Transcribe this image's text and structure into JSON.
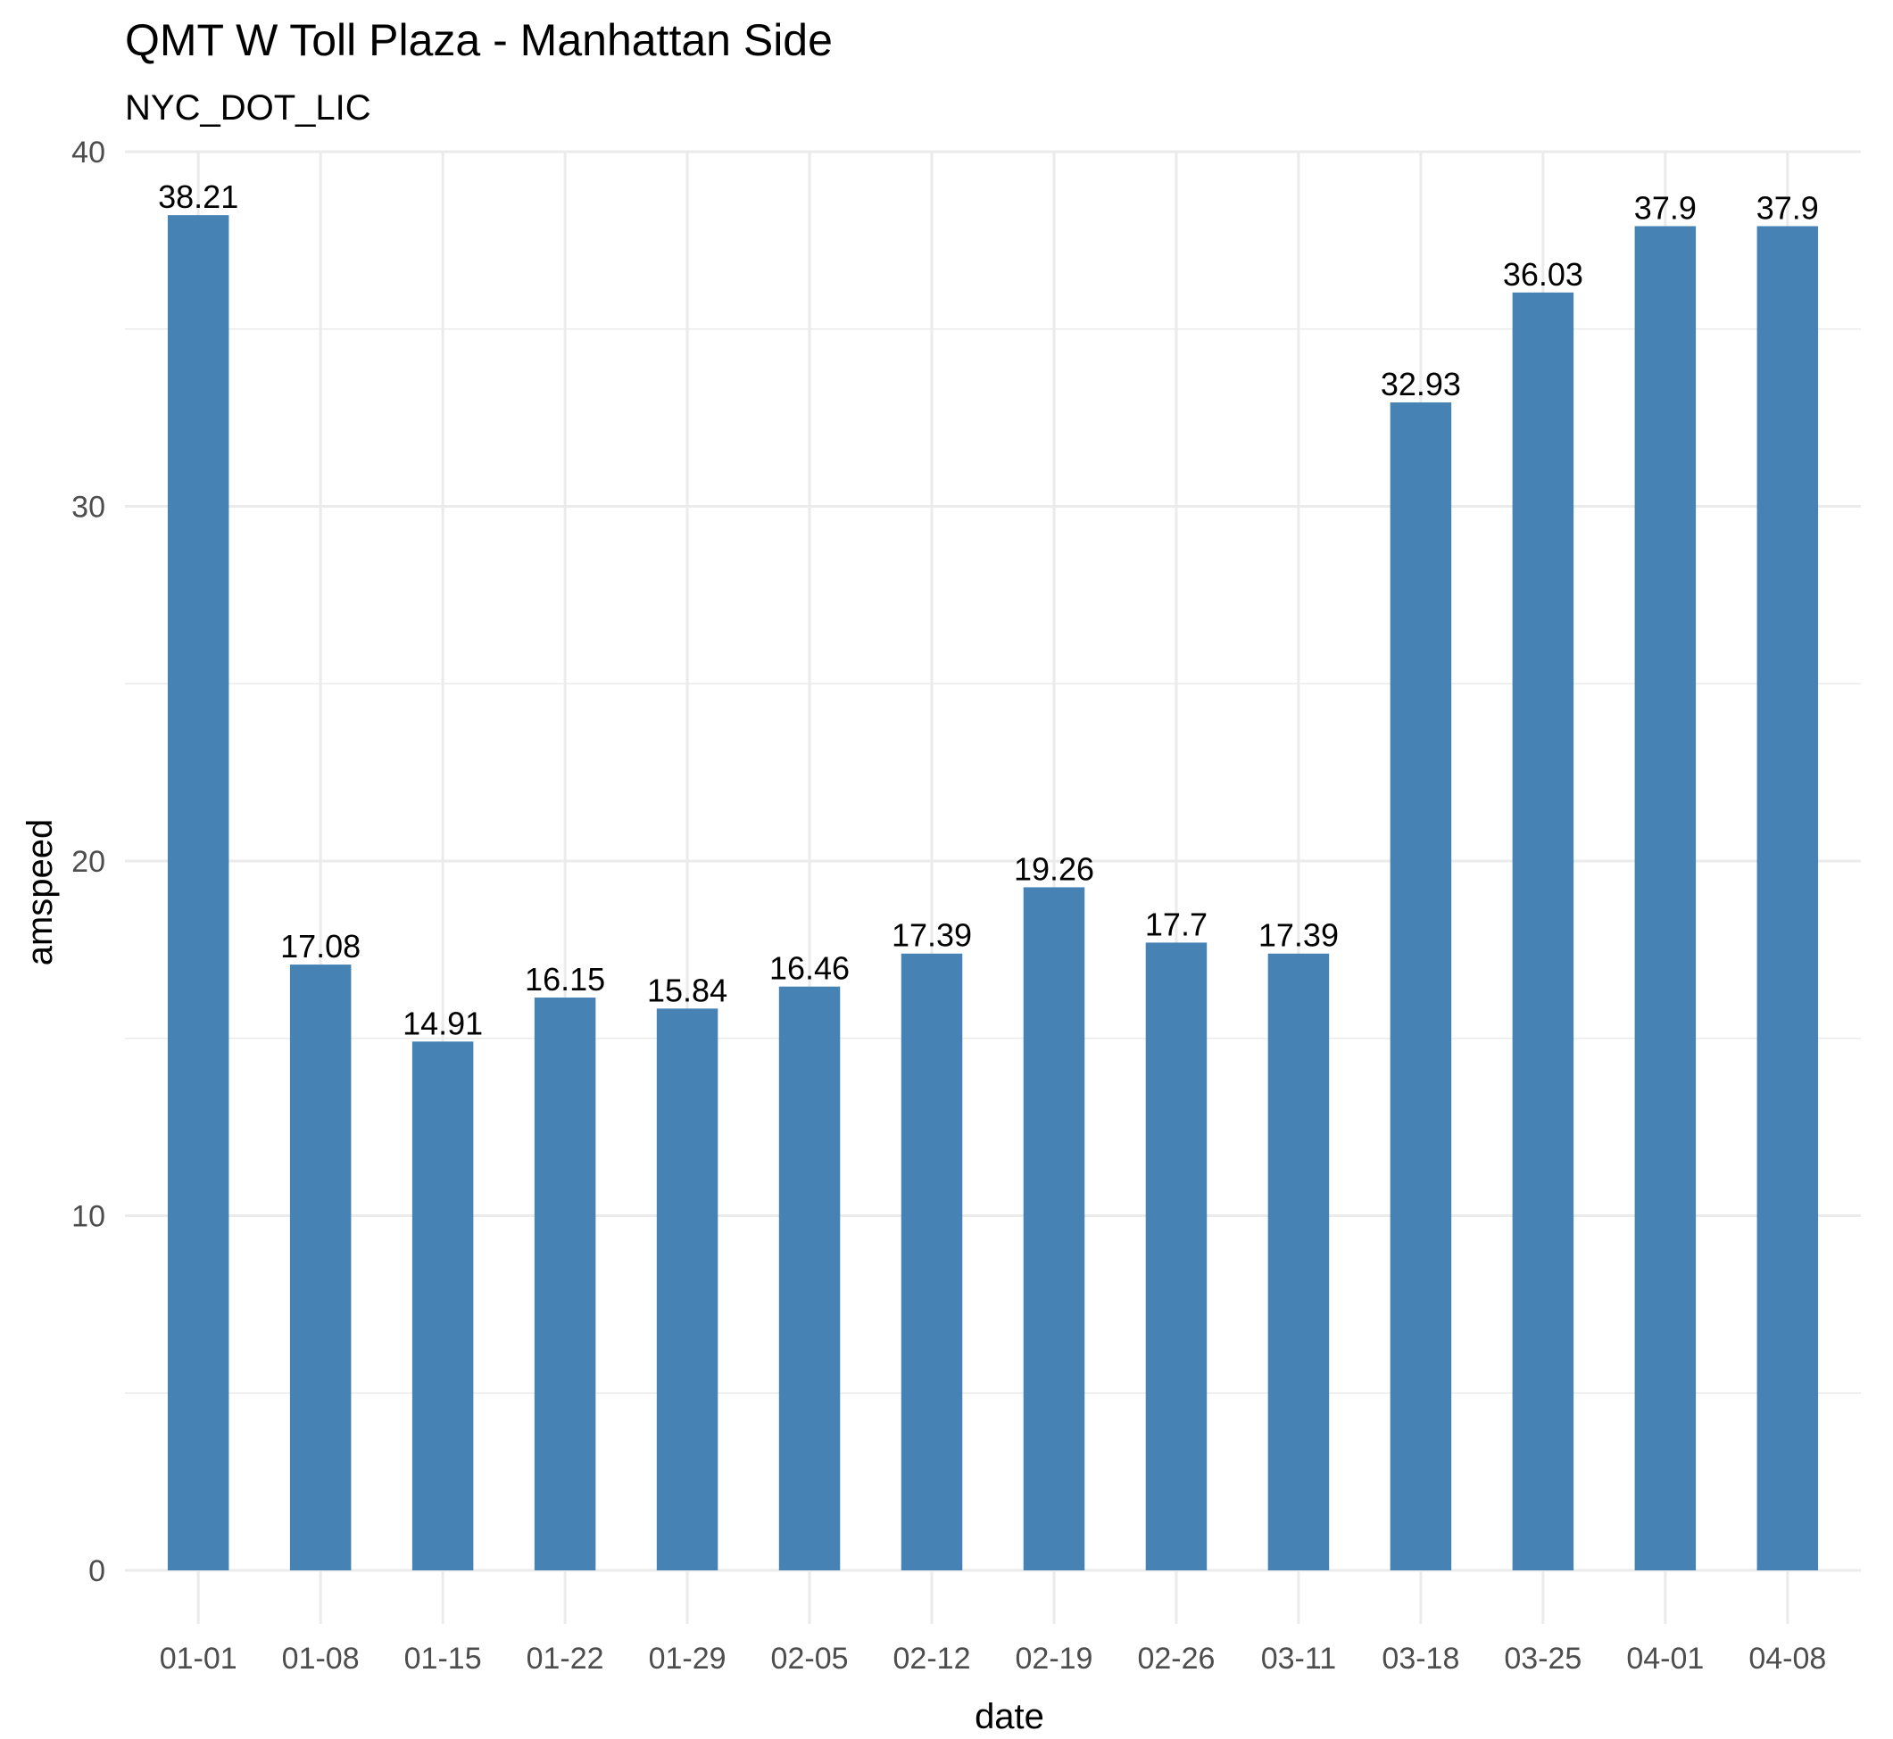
{
  "chart_data": {
    "type": "bar",
    "title": "QMT W Toll Plaza - Manhattan Side",
    "subtitle": "NYC_DOT_LIC",
    "xlabel": "date",
    "ylabel": "amspeed",
    "categories": [
      "01-01",
      "01-08",
      "01-15",
      "01-22",
      "01-29",
      "02-05",
      "02-12",
      "02-19",
      "02-26",
      "03-11",
      "03-18",
      "03-25",
      "04-01",
      "04-08"
    ],
    "values": [
      38.21,
      17.08,
      14.91,
      16.15,
      15.84,
      16.46,
      17.39,
      19.26,
      17.7,
      17.39,
      32.93,
      36.03,
      37.9,
      37.9
    ],
    "data_labels": [
      "38.21",
      "17.08",
      "14.91",
      "16.15",
      "15.84",
      "16.46",
      "17.39",
      "19.26",
      "17.7",
      "17.39",
      "32.93",
      "36.03",
      "37.9",
      "37.9"
    ],
    "yticks": [
      0,
      10,
      20,
      30,
      40
    ],
    "ylim": [
      0,
      40
    ],
    "grid": true,
    "bar_color": "#4682b4"
  }
}
